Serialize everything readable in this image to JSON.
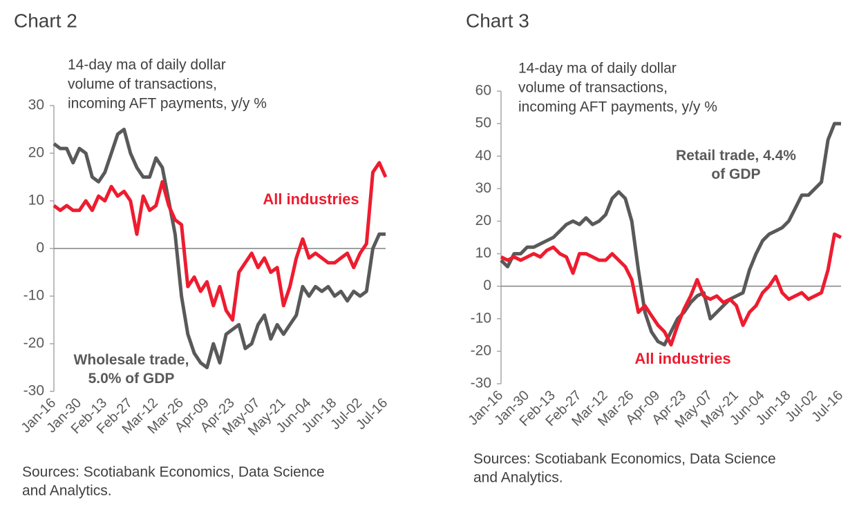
{
  "chart_data": [
    {
      "type": "line",
      "title": "Chart 2",
      "subtitle": [
        "14-day  ma of daily dollar",
        "volume of transactions,",
        "incoming AFT payments, y/y %"
      ],
      "source": [
        "Sources: Scotiabank Economics, Data Science",
        "and Analytics."
      ],
      "categories": [
        "Jan-16",
        null,
        null,
        null,
        "Jan-30",
        null,
        null,
        null,
        "Feb-13",
        null,
        null,
        null,
        "Feb-27",
        null,
        null,
        null,
        "Mar-12",
        null,
        null,
        null,
        "Mar-26",
        null,
        null,
        null,
        "Apr-09",
        null,
        null,
        null,
        "Apr-23",
        null,
        null,
        null,
        "May-07",
        null,
        null,
        null,
        "May-21",
        null,
        null,
        null,
        "Jun-04",
        null,
        null,
        null,
        "Jun-18",
        null,
        null,
        null,
        "Jul-02",
        null,
        null,
        null,
        "Jul-16"
      ],
      "ylim": [
        -30,
        30
      ],
      "yticks": [
        -30,
        -20,
        -10,
        0,
        10,
        20,
        30
      ],
      "series": [
        {
          "name": "Wholesale trade, 5.0% of GDP",
          "color": "#595959",
          "values": [
            22,
            21,
            21,
            18,
            21,
            20,
            15,
            14,
            16,
            20,
            24,
            25,
            20,
            17,
            15,
            15,
            19,
            17,
            10,
            3,
            -10,
            -18,
            -22,
            -24,
            -25,
            -20,
            -24,
            -18,
            -17,
            -16,
            -21,
            -20,
            -16,
            -14,
            -19,
            -16,
            -18,
            -16,
            -14,
            -8,
            -10,
            -8,
            -9,
            -8,
            -10,
            -9,
            -11,
            -9,
            -10,
            -9,
            0,
            3,
            3
          ]
        },
        {
          "name": "All industries",
          "color": "#ee1c2f",
          "values": [
            9,
            8,
            9,
            8,
            8,
            10,
            8,
            11,
            10,
            13,
            11,
            12,
            10,
            3,
            11,
            8,
            9,
            14,
            9,
            6,
            5,
            -8,
            -6,
            -9,
            -7,
            -12,
            -8,
            -13,
            -15,
            -5,
            -3,
            -1,
            -4,
            -2,
            -5,
            -4,
            -12,
            -8,
            -2,
            2,
            -2,
            -1,
            -2,
            -3,
            -3,
            -2,
            -1,
            -4,
            -1,
            1,
            16,
            18,
            15
          ]
        }
      ]
    },
    {
      "type": "line",
      "title": "Chart 3",
      "subtitle": [
        "14-day  ma of daily dollar",
        "volume of transactions,",
        "incoming AFT payments, y/y %"
      ],
      "source": [
        "Sources: Scotiabank Economics, Data Science",
        "and Analytics."
      ],
      "categories": [
        "Jan-16",
        null,
        null,
        null,
        "Jan-30",
        null,
        null,
        null,
        "Feb-13",
        null,
        null,
        null,
        "Feb-27",
        null,
        null,
        null,
        "Mar-12",
        null,
        null,
        null,
        "Mar-26",
        null,
        null,
        null,
        "Apr-09",
        null,
        null,
        null,
        "Apr-23",
        null,
        null,
        null,
        "May-07",
        null,
        null,
        null,
        "May-21",
        null,
        null,
        null,
        "Jun-04",
        null,
        null,
        null,
        "Jun-18",
        null,
        null,
        null,
        "Jul-02",
        null,
        null,
        null,
        "Jul-16"
      ],
      "ylim": [
        -30,
        60
      ],
      "yticks": [
        -30,
        -20,
        -10,
        0,
        10,
        20,
        30,
        40,
        50,
        60
      ],
      "series": [
        {
          "name": "Retail trade, 4.4% of GDP",
          "color": "#595959",
          "values": [
            8,
            6,
            10,
            10,
            12,
            12,
            13,
            14,
            15,
            17,
            19,
            20,
            19,
            21,
            19,
            20,
            22,
            27,
            29,
            27,
            20,
            5,
            -8,
            -14,
            -17,
            -18,
            -14,
            -10,
            -8,
            -5,
            -3,
            -2,
            -10,
            -8,
            -6,
            -4,
            -3,
            -2,
            5,
            10,
            14,
            16,
            17,
            18,
            20,
            24,
            28,
            28,
            30,
            32,
            45,
            50,
            50
          ]
        },
        {
          "name": "All industries",
          "color": "#ee1c2f",
          "values": [
            9,
            8,
            9,
            8,
            9,
            10,
            9,
            11,
            12,
            10,
            9,
            4,
            10,
            10,
            9,
            8,
            8,
            10,
            8,
            6,
            2,
            -8,
            -6,
            -9,
            -12,
            -14,
            -18,
            -12,
            -7,
            -3,
            2,
            -3,
            -4,
            -3,
            -5,
            -4,
            -6,
            -12,
            -8,
            -6,
            -2,
            0,
            3,
            -2,
            -4,
            -3,
            -2,
            -4,
            -3,
            -2,
            5,
            16,
            15
          ]
        }
      ]
    }
  ]
}
